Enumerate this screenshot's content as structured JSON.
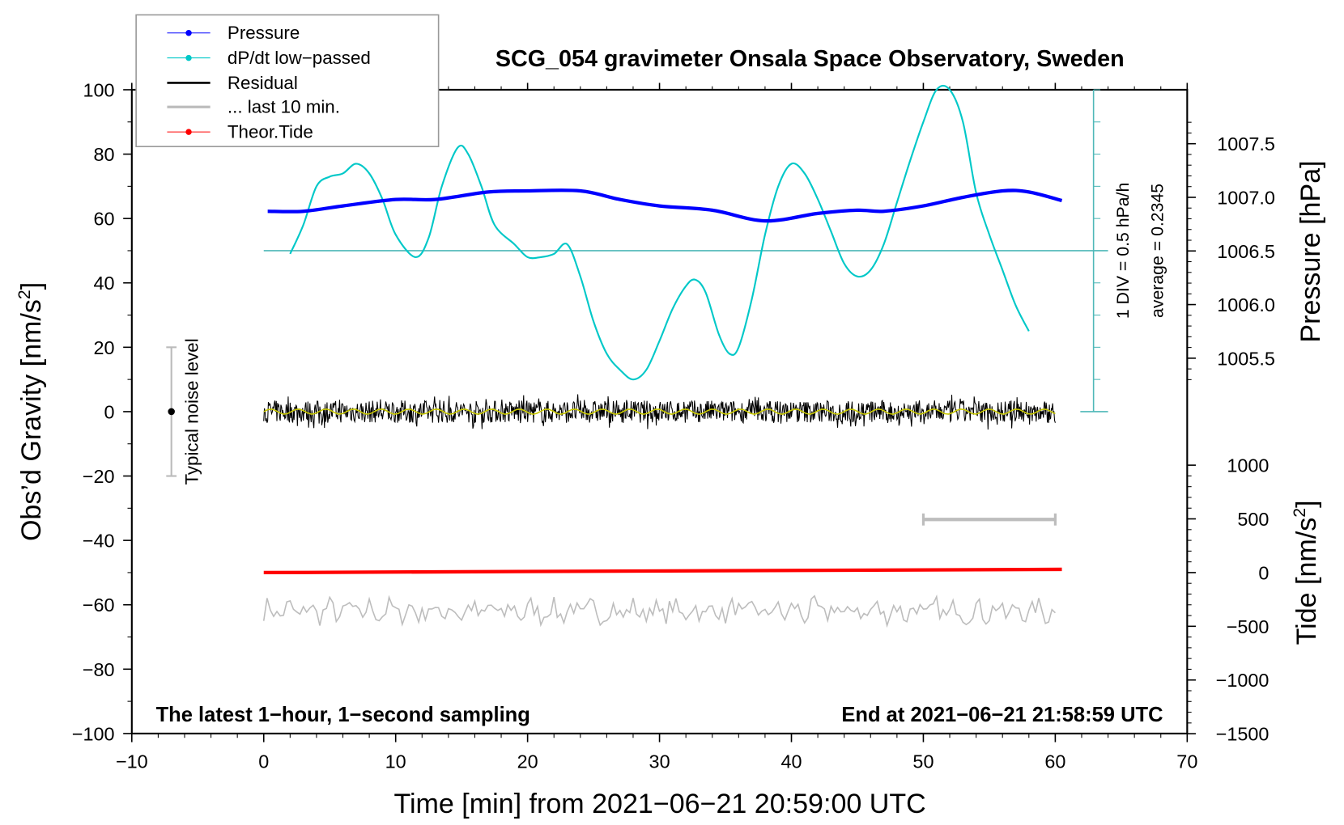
{
  "chart_data": {
    "type": "line",
    "title": "SCG_054 gravimeter Onsala Space Observatory, Sweden",
    "xlabel": "Time [min] from 2021−06−21 20:59:00 UTC",
    "ylabel": {
      "text": "Obs’d Gravity [nm/s",
      "sup": "2",
      "end": "]"
    },
    "y2label": "Pressure [hPa]",
    "y3label": {
      "text": "Tide [nm/s",
      "sup": "2",
      "end": "]"
    },
    "xlim": [
      -10,
      70
    ],
    "ylim": [
      -100,
      100
    ],
    "xticks": [
      "−10",
      "0",
      "10",
      "20",
      "30",
      "40",
      "50",
      "60",
      "70"
    ],
    "yticks": [
      "100",
      "80",
      "60",
      "40",
      "20",
      "0",
      "−20",
      "−40",
      "−60",
      "−80",
      "−100"
    ],
    "pressure_ticks": [
      "1007.5",
      "1007.0",
      "1006.5",
      "1006.0",
      "1005.5"
    ],
    "tide_ticks": [
      "1000",
      "500",
      "0",
      "−500",
      "−1000",
      "−1500"
    ],
    "note_left": "The latest 1−hour, 1−second sampling",
    "note_right": "End at 2021−06−21 21:58:59 UTC",
    "noise_label": "Typical noise level",
    "dpdt_scale_label": "1 DIV = 0.5 hPa/h",
    "dpdt_average_label": "average = 0.2345",
    "legend": {
      "position": "top-left",
      "items": [
        "Pressure",
        "dP/dt low−passed",
        "Residual",
        "... last 10 min.",
        "Theor.Tide"
      ]
    },
    "colors": {
      "pressure": "#0000ff",
      "dpdt": "#00c8c8",
      "residual": "#000000",
      "smooth": "#c8c800",
      "last10": "#bdbdbd",
      "tide": "#ff0000",
      "dpdt_axis": "#4fb8b8"
    },
    "series": [
      {
        "name": "Pressure",
        "unit": "hPa",
        "x": [
          0.3,
          3,
          6,
          10,
          13,
          17,
          20,
          24,
          27,
          30,
          34,
          38,
          42,
          45,
          47,
          50,
          53,
          56,
          58,
          60.5
        ],
        "y": [
          1006.87,
          1006.87,
          1006.92,
          1006.98,
          1006.98,
          1007.05,
          1007.06,
          1007.06,
          1006.98,
          1006.92,
          1006.88,
          1006.78,
          1006.85,
          1006.88,
          1006.87,
          1006.92,
          1007.0,
          1007.06,
          1007.05,
          1006.97
        ]
      },
      {
        "name": "dP/dt low-passed",
        "unit": "hPa/h",
        "x": [
          2,
          3,
          4,
          5,
          6,
          7,
          8,
          9,
          10,
          11.5,
          12.5,
          13.5,
          14.7,
          15.5,
          16.5,
          17.5,
          19,
          20,
          21,
          22,
          23,
          24,
          25,
          26,
          27,
          28,
          29,
          30,
          31,
          32,
          32.7,
          33.5,
          34.5,
          35.3,
          36,
          37,
          38,
          39,
          40,
          41,
          42,
          43,
          44,
          45,
          46,
          47,
          48,
          49,
          50,
          51,
          52,
          53,
          54,
          55,
          56,
          57,
          58
        ],
        "y": [
          -0.05,
          0.4,
          1.0,
          1.15,
          1.2,
          1.35,
          1.2,
          0.8,
          0.25,
          -0.1,
          0.2,
          1.0,
          1.6,
          1.5,
          1.0,
          0.4,
          0.1,
          -0.1,
          -0.1,
          -0.05,
          0.1,
          -0.4,
          -1.1,
          -1.6,
          -1.85,
          -2.0,
          -1.85,
          -1.4,
          -0.9,
          -0.55,
          -0.45,
          -0.65,
          -1.3,
          -1.6,
          -1.5,
          -0.75,
          0.25,
          1.0,
          1.35,
          1.2,
          0.8,
          0.3,
          -0.2,
          -0.4,
          -0.3,
          0.1,
          0.75,
          1.4,
          2.0,
          2.5,
          2.5,
          2.0,
          0.9,
          0.25,
          -0.3,
          -0.85,
          -1.25
        ]
      },
      {
        "name": "Residual",
        "unit": "nm/s2",
        "x_range": [
          0,
          60
        ],
        "mean": 0,
        "amplitude": 3.5
      },
      {
        "name": "... last 10 min.",
        "unit": "nm/s2",
        "x_range": [
          0,
          60
        ],
        "offset": -62,
        "amplitude": 3
      },
      {
        "name": "Theor.Tide",
        "unit": "nm/s2",
        "x": [
          0,
          60.5
        ],
        "y": [
          0,
          30
        ]
      }
    ],
    "last10_range": [
      50,
      60
    ],
    "noise_bar": {
      "x": -7,
      "y": [
        -20,
        20
      ],
      "center": 0
    }
  }
}
